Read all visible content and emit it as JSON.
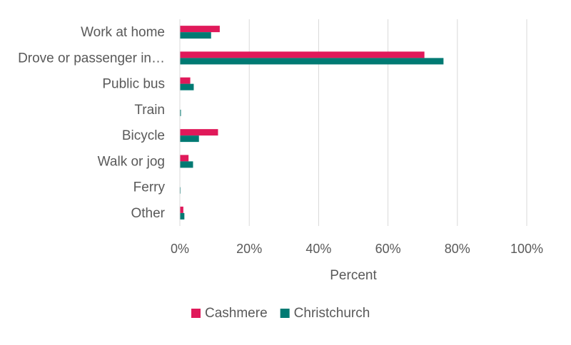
{
  "chart_data": {
    "type": "bar",
    "orientation": "horizontal",
    "categories": [
      "Work at home",
      "Drove or passenger in…",
      "Public bus",
      "Train",
      "Bicycle",
      "Walk or jog",
      "Ferry",
      "Other"
    ],
    "series": [
      {
        "name": "Cashmere",
        "color": "#e0195a",
        "values": [
          11.5,
          70.5,
          3.0,
          0.0,
          11.0,
          2.5,
          0.0,
          1.0
        ]
      },
      {
        "name": "Christchurch",
        "color": "#007a73",
        "values": [
          9.0,
          76.0,
          4.0,
          0.3,
          5.5,
          3.8,
          0.2,
          1.3
        ]
      }
    ],
    "xlabel": "Percent",
    "xlim": [
      0,
      100
    ],
    "xticks": [
      0,
      20,
      40,
      60,
      80,
      100
    ],
    "xtick_labels": [
      "0%",
      "20%",
      "40%",
      "60%",
      "80%",
      "100%"
    ],
    "grid": "vertical",
    "legend_position": "bottom"
  }
}
